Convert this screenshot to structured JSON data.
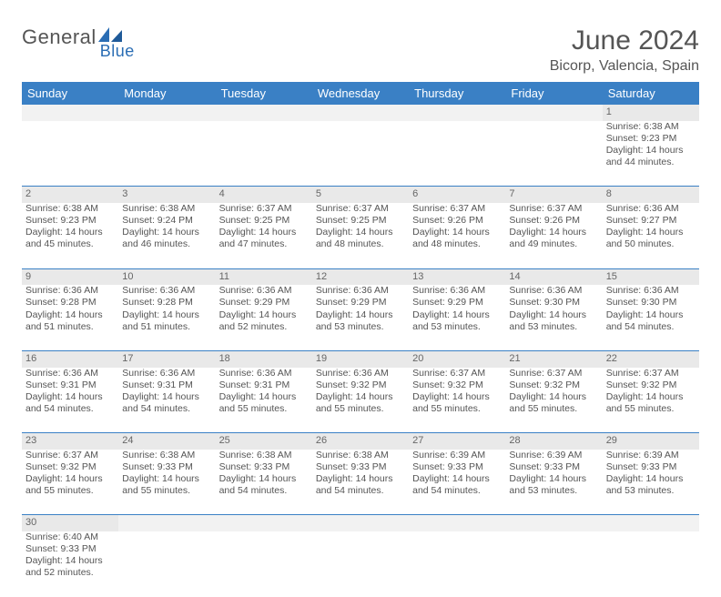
{
  "brand": {
    "part1": "General",
    "part2": "Blue"
  },
  "title": "June 2024",
  "location": "Bicorp, Valencia, Spain",
  "colors": {
    "header_bg": "#3a80c5",
    "header_text": "#ffffff",
    "daynum_bg": "#e9e9e9",
    "text": "#555555",
    "cell_border": "#3a80c5",
    "page_bg": "#ffffff"
  },
  "dayNames": [
    "Sunday",
    "Monday",
    "Tuesday",
    "Wednesday",
    "Thursday",
    "Friday",
    "Saturday"
  ],
  "weeks": [
    [
      null,
      null,
      null,
      null,
      null,
      null,
      {
        "n": "1",
        "sr": "6:38 AM",
        "ss": "9:23 PM",
        "dl": "14 hours and 44 minutes."
      }
    ],
    [
      {
        "n": "2",
        "sr": "6:38 AM",
        "ss": "9:23 PM",
        "dl": "14 hours and 45 minutes."
      },
      {
        "n": "3",
        "sr": "6:38 AM",
        "ss": "9:24 PM",
        "dl": "14 hours and 46 minutes."
      },
      {
        "n": "4",
        "sr": "6:37 AM",
        "ss": "9:25 PM",
        "dl": "14 hours and 47 minutes."
      },
      {
        "n": "5",
        "sr": "6:37 AM",
        "ss": "9:25 PM",
        "dl": "14 hours and 48 minutes."
      },
      {
        "n": "6",
        "sr": "6:37 AM",
        "ss": "9:26 PM",
        "dl": "14 hours and 48 minutes."
      },
      {
        "n": "7",
        "sr": "6:37 AM",
        "ss": "9:26 PM",
        "dl": "14 hours and 49 minutes."
      },
      {
        "n": "8",
        "sr": "6:36 AM",
        "ss": "9:27 PM",
        "dl": "14 hours and 50 minutes."
      }
    ],
    [
      {
        "n": "9",
        "sr": "6:36 AM",
        "ss": "9:28 PM",
        "dl": "14 hours and 51 minutes."
      },
      {
        "n": "10",
        "sr": "6:36 AM",
        "ss": "9:28 PM",
        "dl": "14 hours and 51 minutes."
      },
      {
        "n": "11",
        "sr": "6:36 AM",
        "ss": "9:29 PM",
        "dl": "14 hours and 52 minutes."
      },
      {
        "n": "12",
        "sr": "6:36 AM",
        "ss": "9:29 PM",
        "dl": "14 hours and 53 minutes."
      },
      {
        "n": "13",
        "sr": "6:36 AM",
        "ss": "9:29 PM",
        "dl": "14 hours and 53 minutes."
      },
      {
        "n": "14",
        "sr": "6:36 AM",
        "ss": "9:30 PM",
        "dl": "14 hours and 53 minutes."
      },
      {
        "n": "15",
        "sr": "6:36 AM",
        "ss": "9:30 PM",
        "dl": "14 hours and 54 minutes."
      }
    ],
    [
      {
        "n": "16",
        "sr": "6:36 AM",
        "ss": "9:31 PM",
        "dl": "14 hours and 54 minutes."
      },
      {
        "n": "17",
        "sr": "6:36 AM",
        "ss": "9:31 PM",
        "dl": "14 hours and 54 minutes."
      },
      {
        "n": "18",
        "sr": "6:36 AM",
        "ss": "9:31 PM",
        "dl": "14 hours and 55 minutes."
      },
      {
        "n": "19",
        "sr": "6:36 AM",
        "ss": "9:32 PM",
        "dl": "14 hours and 55 minutes."
      },
      {
        "n": "20",
        "sr": "6:37 AM",
        "ss": "9:32 PM",
        "dl": "14 hours and 55 minutes."
      },
      {
        "n": "21",
        "sr": "6:37 AM",
        "ss": "9:32 PM",
        "dl": "14 hours and 55 minutes."
      },
      {
        "n": "22",
        "sr": "6:37 AM",
        "ss": "9:32 PM",
        "dl": "14 hours and 55 minutes."
      }
    ],
    [
      {
        "n": "23",
        "sr": "6:37 AM",
        "ss": "9:32 PM",
        "dl": "14 hours and 55 minutes."
      },
      {
        "n": "24",
        "sr": "6:38 AM",
        "ss": "9:33 PM",
        "dl": "14 hours and 55 minutes."
      },
      {
        "n": "25",
        "sr": "6:38 AM",
        "ss": "9:33 PM",
        "dl": "14 hours and 54 minutes."
      },
      {
        "n": "26",
        "sr": "6:38 AM",
        "ss": "9:33 PM",
        "dl": "14 hours and 54 minutes."
      },
      {
        "n": "27",
        "sr": "6:39 AM",
        "ss": "9:33 PM",
        "dl": "14 hours and 54 minutes."
      },
      {
        "n": "28",
        "sr": "6:39 AM",
        "ss": "9:33 PM",
        "dl": "14 hours and 53 minutes."
      },
      {
        "n": "29",
        "sr": "6:39 AM",
        "ss": "9:33 PM",
        "dl": "14 hours and 53 minutes."
      }
    ],
    [
      {
        "n": "30",
        "sr": "6:40 AM",
        "ss": "9:33 PM",
        "dl": "14 hours and 52 minutes."
      },
      null,
      null,
      null,
      null,
      null,
      null
    ]
  ],
  "labels": {
    "sunrise": "Sunrise:",
    "sunset": "Sunset:",
    "daylight": "Daylight:"
  }
}
